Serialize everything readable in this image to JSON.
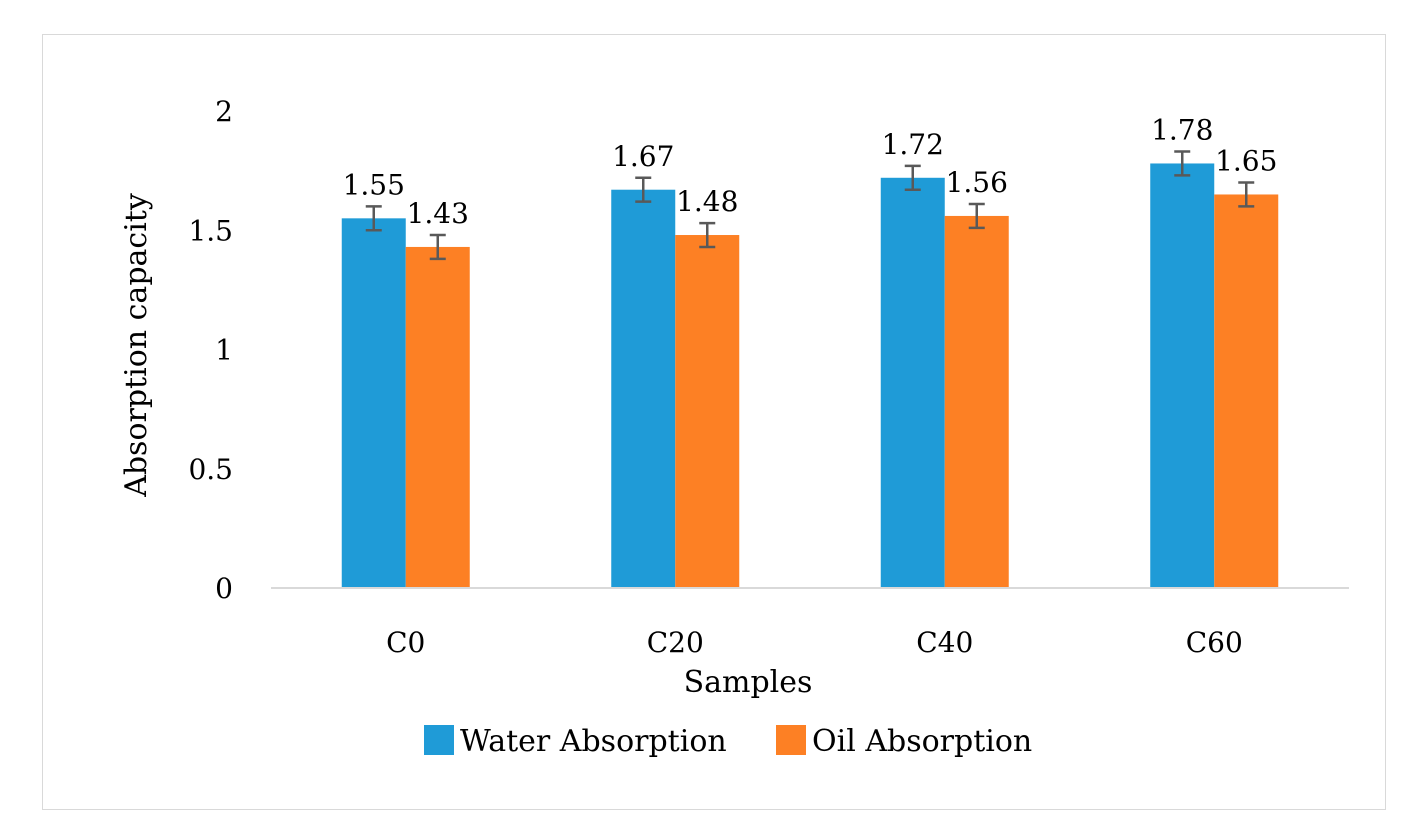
{
  "chart_data": {
    "type": "bar",
    "title": "",
    "xlabel": "Samples",
    "ylabel": "Absorption capacity",
    "categories": [
      "C0",
      "C20",
      "C40",
      "C60"
    ],
    "ylim": [
      0,
      2
    ],
    "yticks": [
      0,
      0.5,
      1,
      1.5,
      2
    ],
    "ytick_labels": [
      "0",
      "0.5",
      "1",
      "1.5",
      "2"
    ],
    "grid": false,
    "legend_position": "bottom",
    "series": [
      {
        "name": "Water Absorption",
        "color": "#1f9bd7",
        "values": [
          1.55,
          1.67,
          1.72,
          1.78
        ],
        "labels": [
          "1.55",
          "1.67",
          "1.72",
          "1.78"
        ],
        "errors": [
          0.05,
          0.05,
          0.05,
          0.05
        ]
      },
      {
        "name": "Oil Absorption",
        "color": "#fd8024",
        "values": [
          1.43,
          1.48,
          1.56,
          1.65
        ],
        "labels": [
          "1.43",
          "1.48",
          "1.56",
          "1.65"
        ],
        "errors": [
          0.05,
          0.05,
          0.05,
          0.05
        ]
      }
    ],
    "error_bar_color": "#595959",
    "axis_color": "#d9d9d9"
  }
}
